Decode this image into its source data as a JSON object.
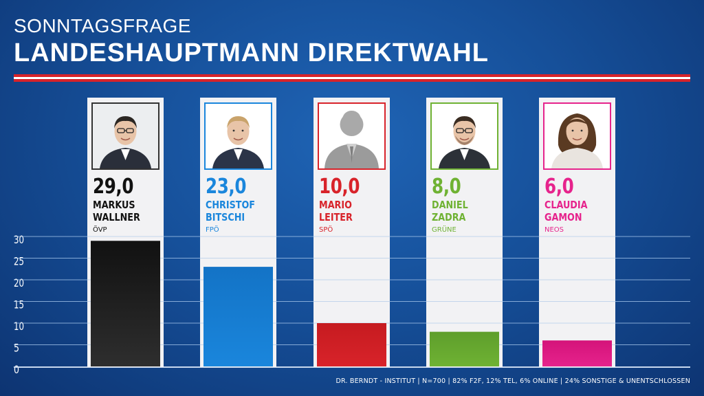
{
  "header": {
    "subtitle": "SONNTAGSFRAGE",
    "title": "LANDESHAUPTMANN DIREKTWAHL"
  },
  "chart_data": {
    "type": "bar",
    "title": "LANDESHAUPTMANN DIREKTWAHL",
    "subtitle": "SONNTAGSFRAGE",
    "xlabel": "",
    "ylabel": "",
    "ylim": [
      0,
      30
    ],
    "yticks": [
      "0",
      "5",
      "10",
      "15",
      "20",
      "25",
      "30"
    ],
    "grid": true,
    "categories": [
      "MARKUS WALLNER",
      "CHRISTOF BITSCHI",
      "MARIO LEITER",
      "DANIEL ZADRA",
      "CLAUDIA GAMON"
    ],
    "values": [
      29.0,
      23.0,
      10.0,
      8.0,
      6.0
    ],
    "bars": [
      {
        "label": "29,0",
        "first": "MARKUS",
        "last": "WALLNER",
        "party": "ÖVP",
        "value": 29.0,
        "color": "#111111",
        "color2": "#2e2e2e",
        "photo": "portrait-man-glasses"
      },
      {
        "label": "23,0",
        "first": "CHRISTOF",
        "last": "BITSCHI",
        "party": "FPÖ",
        "value": 23.0,
        "color": "#1373c6",
        "color2": "#1a86dc",
        "photo": "portrait-man-blond"
      },
      {
        "label": "10,0",
        "first": "MARIO",
        "last": "LEITER",
        "party": "SPÖ",
        "value": 10.0,
        "color": "#c61b20",
        "color2": "#d8232a",
        "photo": "silhouette-placeholder"
      },
      {
        "label": "8,0",
        "first": "DANIEL",
        "last": "ZADRA",
        "party": "GRÜNE",
        "value": 8.0,
        "color": "#5e9e2c",
        "color2": "#6fb233",
        "photo": "portrait-man-beard-glasses"
      },
      {
        "label": "6,0",
        "first": "CLAUDIA",
        "last": "GAMON",
        "party": "NEOS",
        "value": 6.0,
        "color": "#d4137a",
        "color2": "#e6238c",
        "photo": "portrait-woman"
      }
    ]
  },
  "footer": {
    "source": "DR. BERNDT - INSTITUT  |  N=700  |  82% F2F, 12% TEL, 6% ONLINE  |  24% SONSTIGE & UNENTSCHLOSSEN"
  }
}
